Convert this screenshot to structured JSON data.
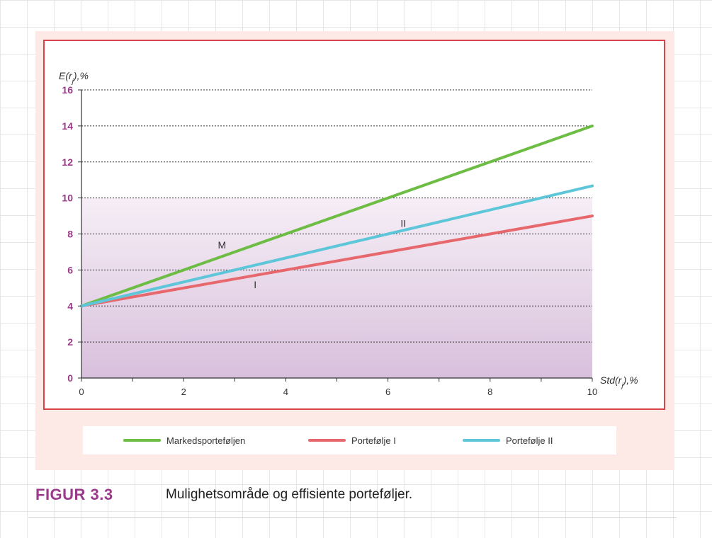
{
  "figure": {
    "caption_number": "FIGUR 3.3",
    "caption_text": "Mulighetsområde og effisiente porteføljer."
  },
  "colors": {
    "panel_bg": "#fde9e6",
    "frame_border": "#d9434a",
    "tick_label": "#9b3a8a",
    "region_top": "#f6eef6",
    "region_bottom": "#d8c0dc"
  },
  "chart_data": {
    "type": "line",
    "title": "",
    "ylabel": "E(r",
    "ylabel_sub": "j",
    "ylabel_suffix": "),%",
    "xlabel": "Std(r",
    "xlabel_sub": "j",
    "xlabel_suffix": "),%",
    "xlim": [
      0,
      10
    ],
    "ylim": [
      0,
      16
    ],
    "x_ticks": [
      0,
      2,
      4,
      6,
      8,
      10
    ],
    "y_ticks": [
      0,
      2,
      4,
      6,
      8,
      10,
      12,
      14,
      16
    ],
    "grid": "horizontal-dotted",
    "legend_position": "bottom",
    "feasible_region": {
      "x": [
        0,
        10
      ],
      "y": [
        0,
        10
      ]
    },
    "series": [
      {
        "name": "Markedsporteføljen",
        "color": "#6dbd45",
        "x": [
          0,
          10
        ],
        "y": [
          4,
          14
        ]
      },
      {
        "name": "Portefølje I",
        "color": "#e7686c",
        "x": [
          0,
          10
        ],
        "y": [
          4,
          9
        ]
      },
      {
        "name": "Portefølje II",
        "color": "#5ec6d9",
        "x": [
          0,
          10
        ],
        "y": [
          4,
          10.67
        ]
      }
    ],
    "annotations": [
      {
        "text": "M",
        "x": 2.75,
        "y": 7.2
      },
      {
        "text": "I",
        "x": 3.4,
        "y": 5.0
      },
      {
        "text": "II",
        "x": 6.3,
        "y": 8.4
      }
    ]
  }
}
